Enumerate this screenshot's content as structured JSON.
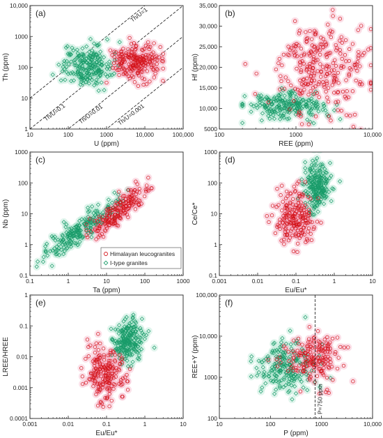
{
  "colors": {
    "himalayan": "#d4151c",
    "itype": "#1a9c6a",
    "himalayan_halo": "#f4a7bd",
    "itype_halo": "#a8e3cc"
  },
  "legend": {
    "himalayan_label": "Himalayan leucogranites",
    "itype_label": "I-type granites"
  },
  "chart_data": [
    {
      "panel": "(a)",
      "type": "scatter",
      "xscale": "log",
      "yscale": "log",
      "xlabel": "U (ppm)",
      "ylabel": "Th (ppm)",
      "xlim": [
        10,
        100000
      ],
      "ylim": [
        1,
        10000
      ],
      "xticks": [
        "10",
        "100",
        "1000",
        "10,000",
        "100,000"
      ],
      "yticks": [
        "1",
        "10",
        "100",
        "1000",
        "10,000"
      ],
      "reference_lines": [
        "Th/U=1",
        "Th/U=0.1",
        "Th/U=0.01",
        "Th/U=0.001"
      ],
      "series": [
        {
          "name": "Himalayan leucogranites",
          "center": [
            6000,
            150
          ],
          "spread": [
            0.32,
            0.3
          ],
          "n": 220,
          "xrange": [
            1000,
            30000
          ]
        },
        {
          "name": "I-type granites",
          "center": [
            300,
            110
          ],
          "spread": [
            0.32,
            0.32
          ],
          "n": 220,
          "xrange": [
            25,
            4000
          ]
        }
      ]
    },
    {
      "panel": "(b)",
      "type": "scatter",
      "xscale": "log",
      "yscale": "linear",
      "xlabel": "REE (ppm)",
      "ylabel": "Hf (ppm)",
      "xlim": [
        100,
        10000
      ],
      "ylim": [
        5000,
        35000
      ],
      "xticks": [
        "100",
        "1000",
        "10,000"
      ],
      "yticks": [
        "5000",
        "10,000",
        "15,000",
        "20,000",
        "25,000",
        "30,000",
        "35,000"
      ],
      "series": [
        {
          "name": "Himalayan leucogranites",
          "center": [
            2200,
            20000
          ],
          "spread": [
            0.32,
            5500
          ],
          "n": 260,
          "xrange": [
            130,
            9500
          ]
        },
        {
          "name": "I-type granites",
          "center": [
            700,
            10500
          ],
          "spread": [
            0.25,
            1500
          ],
          "n": 220,
          "xrange": [
            200,
            6000
          ]
        }
      ]
    },
    {
      "panel": "(c)",
      "type": "scatter",
      "xscale": "log",
      "yscale": "log",
      "xlabel": "Ta (ppm)",
      "ylabel": "Nb (ppm)",
      "xlim": [
        0.1,
        1000
      ],
      "ylim": [
        0.1,
        1000
      ],
      "xticks": [
        "0.1",
        "1",
        "10",
        "100",
        "1000"
      ],
      "yticks": [
        "0.1",
        "1",
        "10",
        "100",
        "1000"
      ],
      "trend": true,
      "series": [
        {
          "name": "Himalayan leucogranites",
          "center": [
            20,
            12
          ],
          "spread": [
            0.38,
            0.2
          ],
          "n": 200,
          "xrange": [
            3,
            150
          ]
        },
        {
          "name": "I-type granites",
          "center": [
            2,
            3
          ],
          "spread": [
            0.45,
            0.2
          ],
          "n": 220,
          "xrange": [
            0.15,
            40
          ]
        }
      ]
    },
    {
      "panel": "(d)",
      "type": "scatter",
      "xscale": "log",
      "yscale": "log",
      "xlabel": "Eu/Eu*",
      "ylabel": "Ce/Ce*",
      "xlim": [
        0.001,
        10
      ],
      "ylim": [
        0.1,
        1000
      ],
      "xticks": [
        "0.001",
        "0.01",
        "0.1",
        "1",
        "10"
      ],
      "yticks": [
        "0.1",
        "1",
        "10",
        "100",
        "1000"
      ],
      "series": [
        {
          "name": "Himalayan leucogranites",
          "center": [
            0.09,
            8
          ],
          "spread": [
            0.25,
            0.45
          ],
          "n": 200,
          "xrange": [
            0.008,
            0.6
          ]
        },
        {
          "name": "I-type granites",
          "center": [
            0.35,
            80
          ],
          "spread": [
            0.18,
            0.4
          ],
          "n": 220,
          "xrange": [
            0.05,
            3
          ]
        }
      ]
    },
    {
      "panel": "(e)",
      "type": "scatter",
      "xscale": "log",
      "yscale": "log",
      "xlabel": "Eu/Eu*",
      "ylabel": "LREE/HREE",
      "xlim": [
        0.001,
        10
      ],
      "ylim": [
        0.0001,
        1
      ],
      "xticks": [
        "0.001",
        "0.01",
        "0.1",
        "1",
        "10"
      ],
      "yticks": [
        "0.0001",
        "0.001",
        "0.01",
        "0.1",
        "1"
      ],
      "series": [
        {
          "name": "Himalayan leucogranites",
          "center": [
            0.09,
            0.003
          ],
          "spread": [
            0.25,
            0.45
          ],
          "n": 200,
          "xrange": [
            0.006,
            0.8
          ]
        },
        {
          "name": "I-type granites",
          "center": [
            0.35,
            0.03
          ],
          "spread": [
            0.18,
            0.35
          ],
          "n": 220,
          "xrange": [
            0.05,
            3
          ]
        }
      ]
    },
    {
      "panel": "(f)",
      "type": "scatter",
      "xscale": "log",
      "yscale": "log",
      "xlabel": "P (ppm)",
      "ylabel": "REE+Y (ppm)",
      "xlim": [
        10,
        10000
      ],
      "ylim": [
        100,
        100000
      ],
      "xticks": [
        "10",
        "100",
        "1000",
        "10,000"
      ],
      "yticks": [
        "100",
        "1000",
        "10,000",
        "100,000"
      ],
      "vline": {
        "x": 750,
        "label": "P=750 ppm"
      },
      "series": [
        {
          "name": "Himalayan leucogranites",
          "center": [
            700,
            3000
          ],
          "spread": [
            0.3,
            0.3
          ],
          "n": 180,
          "xrange": [
            60,
            5000
          ]
        },
        {
          "name": "I-type granites",
          "center": [
            200,
            1800
          ],
          "spread": [
            0.3,
            0.3
          ],
          "n": 200,
          "xrange": [
            35,
            1500
          ]
        }
      ]
    }
  ]
}
